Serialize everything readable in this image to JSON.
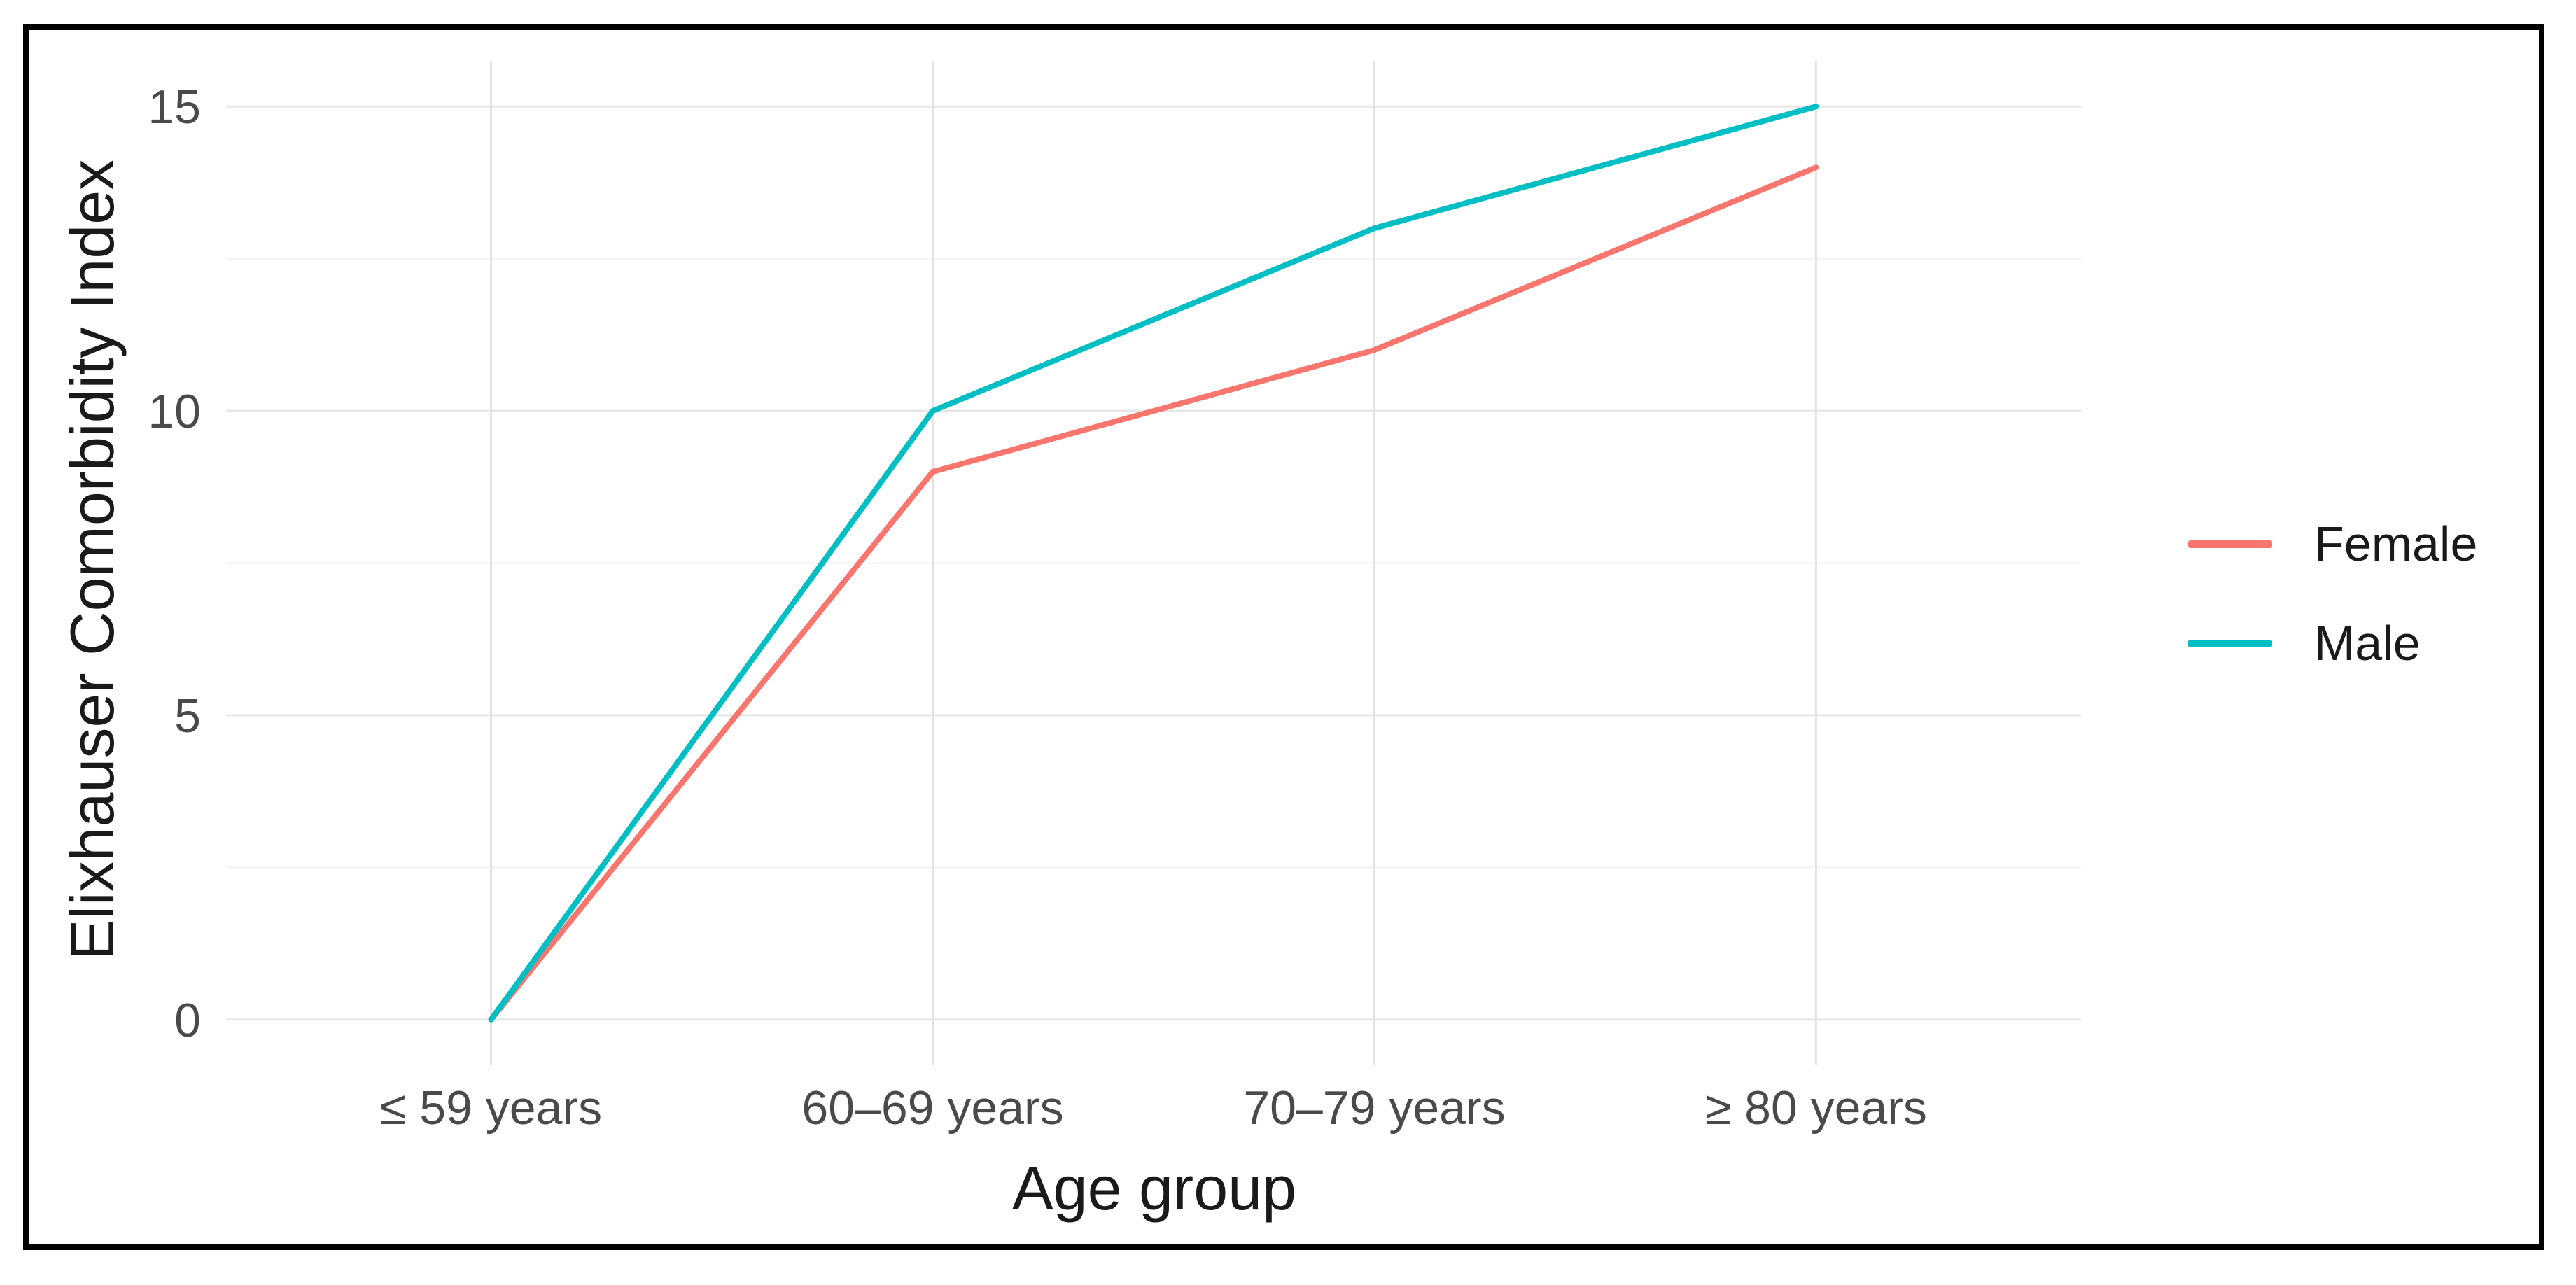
{
  "figure": {
    "border_color": "#000000",
    "background_color": "#ffffff"
  },
  "chart_data": {
    "type": "line",
    "title": "",
    "categories": [
      "≤ 59 years",
      "60–69 years",
      "70–79 years",
      "≥ 80 years"
    ],
    "series": [
      {
        "name": "Female",
        "color": "#F8766D",
        "values": [
          0,
          9,
          11,
          14
        ]
      },
      {
        "name": "Male",
        "color": "#00BFC4",
        "values": [
          0,
          10,
          13,
          15
        ]
      }
    ],
    "xlabel": "Age group",
    "ylabel": "Elixhauser Comorbidity Index",
    "ylim": [
      0,
      15
    ],
    "y_ticks": [
      0,
      5,
      10,
      15
    ],
    "y_minor_ticks": [
      2.5,
      7.5,
      12.5
    ],
    "grid": true,
    "legend_position": "right",
    "colors": {
      "grid_major": "#E6E6E6",
      "grid_minor": "#F2F2F2",
      "grid_vertical": "#E3E3E3",
      "tick_label": "#4A4A4A",
      "axis_title": "#1A1A1A"
    }
  }
}
